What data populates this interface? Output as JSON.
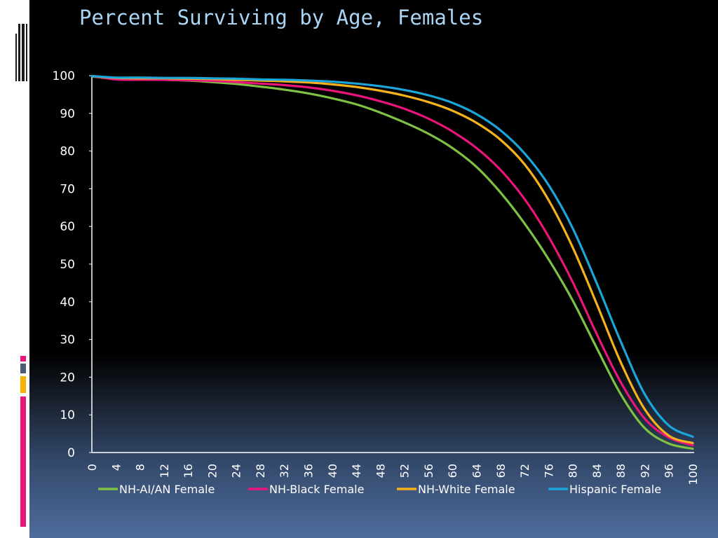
{
  "title": "Percent Surviving by Age, Females",
  "decor_colors": {
    "pink": "#e9157a",
    "slate": "#4d5d75",
    "amber": "#f6b200"
  },
  "chart_data": {
    "type": "line",
    "title": "Percent Surviving by Age, Females",
    "xlabel": "",
    "ylabel": "",
    "x": [
      0,
      4,
      8,
      12,
      16,
      20,
      24,
      28,
      32,
      36,
      40,
      44,
      48,
      52,
      56,
      60,
      64,
      68,
      72,
      76,
      80,
      84,
      88,
      92,
      96,
      100
    ],
    "xlim": [
      0,
      100
    ],
    "ylim": [
      0,
      100
    ],
    "y_ticks": [
      0,
      10,
      20,
      30,
      40,
      50,
      60,
      70,
      80,
      90,
      100
    ],
    "x_ticks": [
      0,
      4,
      8,
      12,
      16,
      20,
      24,
      28,
      32,
      36,
      40,
      44,
      48,
      52,
      56,
      60,
      64,
      68,
      72,
      76,
      80,
      84,
      88,
      92,
      96,
      100
    ],
    "grid": false,
    "legend": "bottom",
    "series": [
      {
        "name": "NH-AI/AN Female",
        "color": "#7dc242",
        "values": [
          99.8,
          99.1,
          99.0,
          98.9,
          98.7,
          98.3,
          97.8,
          97.1,
          96.3,
          95.3,
          94.0,
          92.4,
          90.2,
          87.6,
          84.6,
          80.8,
          75.8,
          69.0,
          60.8,
          51.3,
          40.4,
          27.8,
          15.5,
          6.5,
          2.4,
          1.0
        ]
      },
      {
        "name": "NH-Black Female",
        "color": "#e9157a",
        "values": [
          99.9,
          99.0,
          98.9,
          98.9,
          98.8,
          98.6,
          98.3,
          97.9,
          97.5,
          96.9,
          96.0,
          94.8,
          93.2,
          91.2,
          88.6,
          85.2,
          80.8,
          75.0,
          67.3,
          57.3,
          45.3,
          31.5,
          18.7,
          9.0,
          4.0,
          1.9
        ]
      },
      {
        "name": "NH-White Female",
        "color": "#f6b21b",
        "values": [
          99.9,
          99.4,
          99.3,
          99.3,
          99.2,
          99.1,
          98.9,
          98.7,
          98.5,
          98.2,
          97.7,
          97.0,
          96.0,
          94.7,
          93.0,
          90.7,
          87.5,
          83.0,
          76.5,
          67.0,
          54.5,
          39.5,
          24.0,
          11.5,
          4.5,
          2.5
        ]
      },
      {
        "name": "Hispanic Female",
        "color": "#1aa6d9",
        "values": [
          99.9,
          99.5,
          99.5,
          99.4,
          99.4,
          99.3,
          99.2,
          99.0,
          98.9,
          98.7,
          98.4,
          97.9,
          97.2,
          96.2,
          94.8,
          92.8,
          89.8,
          85.5,
          79.4,
          71.0,
          59.6,
          45.0,
          29.5,
          15.5,
          7.2,
          4.2
        ]
      }
    ]
  }
}
